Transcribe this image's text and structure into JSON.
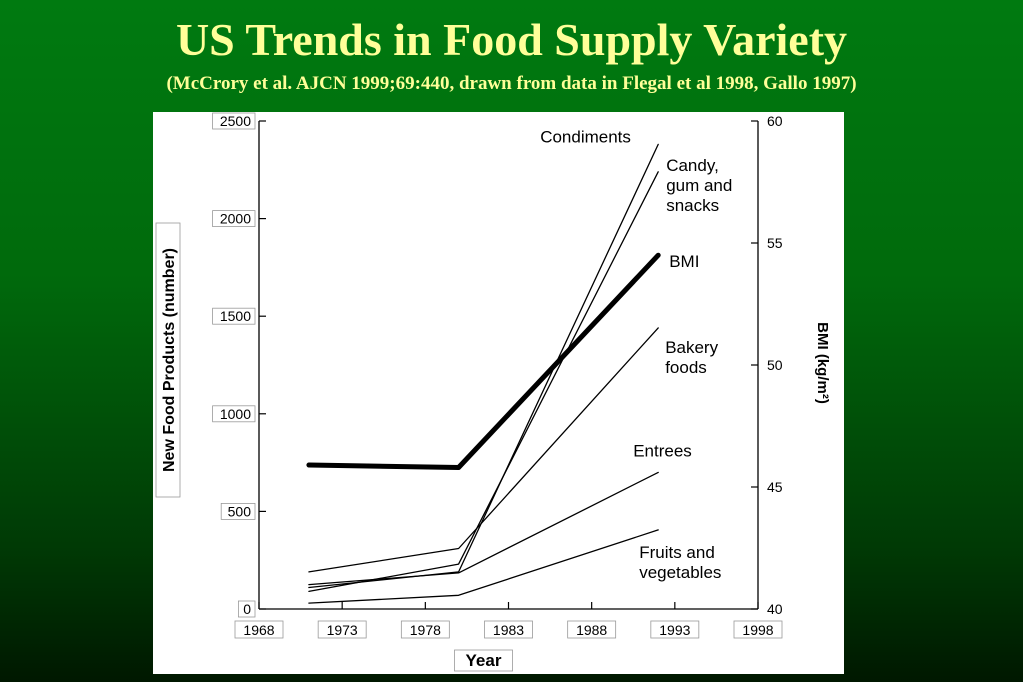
{
  "slide": {
    "title": "US Trends in Food Supply Variety",
    "subtitle": "(McCrory et al. AJCN 1999;69:440, drawn from data in Flegal et al 1998, Gallo 1997)"
  },
  "chart_data": {
    "type": "line",
    "xlabel": "Year",
    "ylabel": "New Food Products (number)",
    "y2label": "BMI (kg/m²)",
    "xlim": [
      1968,
      1998
    ],
    "ylim": [
      0,
      2500
    ],
    "y2lim": [
      40,
      60
    ],
    "x_ticks": [
      1968,
      1973,
      1978,
      1983,
      1988,
      1993,
      1998
    ],
    "y_ticks": [
      0,
      500,
      1000,
      1500,
      2000,
      2500
    ],
    "y2_ticks": [
      40,
      45,
      50,
      55,
      60
    ],
    "grid": false,
    "series": [
      {
        "name": "Condiments",
        "axis": "left",
        "x": [
          1971,
          1980,
          1992
        ],
        "y": [
          110,
          190,
          2380
        ],
        "color": "#000000",
        "width": 1.3
      },
      {
        "name": "Candy, gum and snacks",
        "axis": "left",
        "x": [
          1971,
          1980,
          1992
        ],
        "y": [
          90,
          230,
          2240
        ],
        "color": "#000000",
        "width": 1.3
      },
      {
        "name": "BMI",
        "axis": "right",
        "x": [
          1971,
          1980,
          1992
        ],
        "y": [
          45.9,
          45.8,
          54.5
        ],
        "color": "#000000",
        "width": 5
      },
      {
        "name": "Bakery foods",
        "axis": "left",
        "x": [
          1971,
          1980,
          1992
        ],
        "y": [
          190,
          310,
          1440
        ],
        "color": "#000000",
        "width": 1.3
      },
      {
        "name": "Entrees",
        "axis": "left",
        "x": [
          1971,
          1980,
          1992
        ],
        "y": [
          125,
          185,
          700
        ],
        "color": "#000000",
        "width": 1.3
      },
      {
        "name": "Fruits and vegetables",
        "axis": "left",
        "x": [
          1971,
          1980,
          1992
        ],
        "y": [
          30,
          70,
          405
        ],
        "color": "#000000",
        "width": 1.3
      }
    ],
    "annotations": [
      {
        "series": "Condiments",
        "lines": [
          "Condiments"
        ]
      },
      {
        "series": "Candy, gum and snacks",
        "lines": [
          "Candy,",
          "gum and",
          "snacks"
        ]
      },
      {
        "series": "BMI",
        "lines": [
          "BMI"
        ]
      },
      {
        "series": "Bakery foods",
        "lines": [
          "Bakery",
          "foods"
        ]
      },
      {
        "series": "Entrees",
        "lines": [
          "Entrees"
        ]
      },
      {
        "series": "Fruits and vegetables",
        "lines": [
          "Fruits and",
          "vegetables"
        ]
      }
    ]
  }
}
